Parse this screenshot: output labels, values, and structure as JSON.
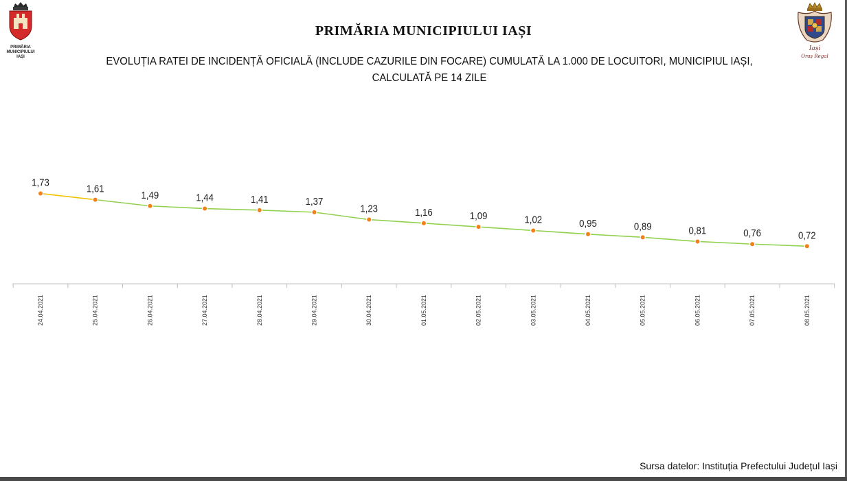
{
  "header": {
    "title": "PRIMĂRIA MUNICIPIULUI IAȘI",
    "subtitle": "EVOLUȚIA RATEI DE INCIDENȚĂ OFICIALĂ (INCLUDE CAZURILE DIN FOCARE) CUMULATĂ LA 1.000 DE LOCUITORI, MUNICIPIUL IAȘI, CALCULATĂ PE 14 ZILE"
  },
  "logo_left": {
    "caption_line1": "PRIMĂRIA",
    "caption_line2": "MUNICIPIULUI",
    "caption_line3": "IAȘI",
    "icon": "city-coat-of-arms-icon"
  },
  "logo_right": {
    "caption_line1": "Iași",
    "caption_line2": "Oraș Regal",
    "icon": "royal-crest-icon"
  },
  "footer": {
    "source": "Sursa datelor: Instituția Prefectului Județul Iași"
  },
  "chart_data": {
    "type": "line",
    "title": "EVOLUȚIA RATEI DE INCIDENȚĂ OFICIALĂ (INCLUDE CAZURILE DIN FOCARE) CUMULATĂ LA 1.000 DE LOCUITORI, MUNICIPIUL IAȘI, CALCULATĂ PE 14 ZILE",
    "categories": [
      "24.04.2021",
      "25.04.2021",
      "26.04.2021",
      "27.04.2021",
      "28.04.2021",
      "29.04.2021",
      "30.04.2021",
      "01.05.2021",
      "02.05.2021",
      "03.05.2021",
      "04.05.2021",
      "05.05.2021",
      "06.05.2021",
      "07.05.2021",
      "08.05.2021"
    ],
    "values": [
      1.73,
      1.61,
      1.49,
      1.44,
      1.41,
      1.37,
      1.23,
      1.16,
      1.09,
      1.02,
      0.95,
      0.89,
      0.81,
      0.76,
      0.72
    ],
    "value_labels": [
      "1,73",
      "1,61",
      "1,49",
      "1,44",
      "1,41",
      "1,37",
      "1,23",
      "1,16",
      "1,09",
      "1,02",
      "0,95",
      "0,89",
      "0,81",
      "0,76",
      "0,72"
    ],
    "ylim": [
      0,
      2
    ],
    "grid": false,
    "colors": {
      "line": "#92d050",
      "line_start": "#f2c200",
      "marker": "#f0801a",
      "marker_stroke": "#ffffff",
      "axis": "#bfbfbf"
    }
  }
}
